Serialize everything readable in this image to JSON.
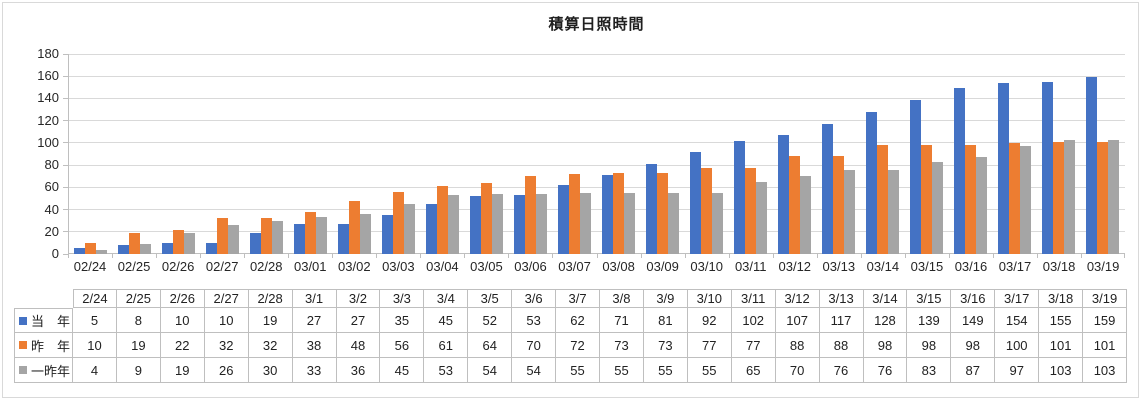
{
  "title": "積算日照時間",
  "chart_data": {
    "type": "bar",
    "title": "積算日照時間",
    "categories": [
      "02/24",
      "02/25",
      "02/26",
      "02/27",
      "02/28",
      "03/01",
      "03/02",
      "03/03",
      "03/04",
      "03/05",
      "03/06",
      "03/07",
      "03/08",
      "03/09",
      "03/10",
      "03/11",
      "03/12",
      "03/13",
      "03/14",
      "03/15",
      "03/16",
      "03/17",
      "03/18",
      "03/19"
    ],
    "series": [
      {
        "name": "当　年",
        "color": "#4472C4",
        "values": [
          5,
          8,
          10,
          10,
          19,
          27,
          27,
          35,
          45,
          52,
          53,
          62,
          71,
          81,
          92,
          102,
          107,
          117,
          128,
          139,
          149,
          154,
          155,
          159
        ]
      },
      {
        "name": "昨　年",
        "color": "#ED7D31",
        "values": [
          10,
          19,
          22,
          32,
          32,
          38,
          48,
          56,
          61,
          64,
          70,
          72,
          73,
          73,
          77,
          77,
          88,
          88,
          98,
          98,
          98,
          100,
          101,
          101
        ]
      },
      {
        "name": "一昨年",
        "color": "#A5A5A5",
        "values": [
          4,
          9,
          19,
          26,
          30,
          33,
          36,
          45,
          53,
          54,
          54,
          55,
          55,
          55,
          55,
          65,
          70,
          76,
          76,
          83,
          87,
          97,
          103,
          103
        ]
      }
    ],
    "ylim": [
      0,
      180
    ],
    "yticks": [
      0,
      20,
      40,
      60,
      80,
      100,
      120,
      140,
      160,
      180
    ],
    "grid": true,
    "legend_position": "data-table-left",
    "gridline_color": "#D9D9D9",
    "axis_color": "#BFBFBF",
    "label_color": "#262626"
  },
  "data_table": {
    "corner_label": "",
    "column_headers": [
      "2/24",
      "2/25",
      "2/26",
      "2/27",
      "2/28",
      "3/1",
      "3/2",
      "3/3",
      "3/4",
      "3/5",
      "3/6",
      "3/7",
      "3/8",
      "3/9",
      "3/10",
      "3/11",
      "3/12",
      "3/13",
      "3/14",
      "3/15",
      "3/16",
      "3/17",
      "3/18",
      "3/19"
    ],
    "rows": [
      {
        "label": "当　年",
        "marker_color": "#4472C4",
        "values": [
          5,
          8,
          10,
          10,
          19,
          27,
          27,
          35,
          45,
          52,
          53,
          62,
          71,
          81,
          92,
          102,
          107,
          117,
          128,
          139,
          149,
          154,
          155,
          159
        ]
      },
      {
        "label": "昨　年",
        "marker_color": "#ED7D31",
        "values": [
          10,
          19,
          22,
          32,
          32,
          38,
          48,
          56,
          61,
          64,
          70,
          72,
          73,
          73,
          77,
          77,
          88,
          88,
          98,
          98,
          98,
          100,
          101,
          101
        ]
      },
      {
        "label": "一昨年",
        "marker_color": "#A5A5A5",
        "values": [
          4,
          9,
          19,
          26,
          30,
          33,
          36,
          45,
          53,
          54,
          54,
          55,
          55,
          55,
          55,
          65,
          70,
          76,
          76,
          83,
          87,
          97,
          103,
          103
        ]
      }
    ],
    "border_color": "#BFBFBF"
  }
}
